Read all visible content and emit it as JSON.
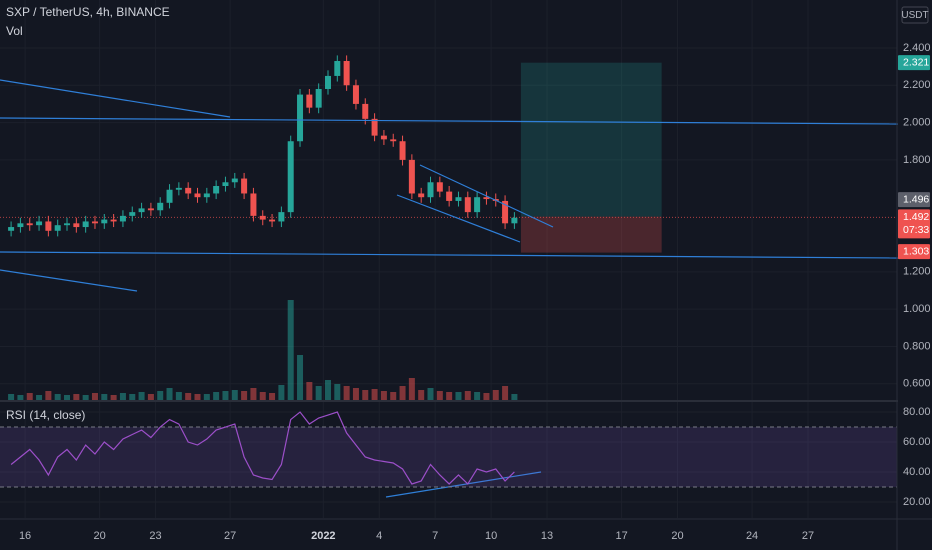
{
  "chart_data": {
    "type": "candlestick",
    "title": "SXP / TetherUS, 4h, BINANCE",
    "volume_label": "Vol",
    "currency": "USDT",
    "up_color": "#26a69a",
    "down_color": "#ef5350",
    "xlim": [
      -0.69,
      95.55
    ],
    "xticks": [
      {
        "value": 2,
        "label": "16"
      },
      {
        "value": 10,
        "label": "20"
      },
      {
        "value": 16,
        "label": "23"
      },
      {
        "value": 24,
        "label": "27"
      },
      {
        "value": 34,
        "label": "2022"
      },
      {
        "value": 40,
        "label": "4"
      },
      {
        "value": 46,
        "label": "7"
      },
      {
        "value": 52,
        "label": "10"
      },
      {
        "value": 58,
        "label": "13"
      },
      {
        "value": 66,
        "label": "17"
      },
      {
        "value": 72,
        "label": "20"
      },
      {
        "value": 80,
        "label": "24"
      },
      {
        "value": 86,
        "label": "27"
      }
    ],
    "ylim": [
      0.513,
      2.657
    ],
    "yticks": [
      {
        "value": 2.4,
        "label": "2.400"
      },
      {
        "value": 2.2,
        "label": "2.200"
      },
      {
        "value": 2.0,
        "label": "2.000"
      },
      {
        "value": 1.8,
        "label": "1.800"
      },
      {
        "value": 1.2,
        "label": "1.200"
      },
      {
        "value": 1.0,
        "label": "1.000"
      },
      {
        "value": 0.8,
        "label": "0.800"
      },
      {
        "value": 0.6,
        "label": "0.600"
      }
    ],
    "open": [
      1.42,
      1.44,
      1.46,
      1.45,
      1.47,
      1.42,
      1.45,
      1.46,
      1.44,
      1.47,
      1.46,
      1.48,
      1.47,
      1.5,
      1.52,
      1.54,
      1.53,
      1.57,
      1.64,
      1.65,
      1.62,
      1.6,
      1.62,
      1.66,
      1.68,
      1.7,
      1.62,
      1.5,
      1.48,
      1.47,
      1.52,
      1.9,
      2.15,
      2.08,
      2.18,
      2.25,
      2.33,
      2.2,
      2.1,
      2.02,
      1.93,
      1.91,
      1.9,
      1.8,
      1.62,
      1.6,
      1.68,
      1.63,
      1.58,
      1.6,
      1.52,
      1.6,
      1.59,
      1.58,
      1.46
    ],
    "high": [
      1.47,
      1.49,
      1.49,
      1.5,
      1.5,
      1.48,
      1.49,
      1.49,
      1.5,
      1.5,
      1.51,
      1.51,
      1.53,
      1.55,
      1.57,
      1.57,
      1.6,
      1.67,
      1.68,
      1.68,
      1.65,
      1.65,
      1.69,
      1.71,
      1.73,
      1.73,
      1.65,
      1.53,
      1.51,
      1.55,
      1.93,
      2.18,
      2.18,
      2.21,
      2.28,
      2.36,
      2.36,
      2.23,
      2.13,
      2.05,
      1.96,
      1.94,
      1.93,
      1.83,
      1.65,
      1.71,
      1.71,
      1.66,
      1.63,
      1.63,
      1.63,
      1.63,
      1.62,
      1.61,
      1.52
    ],
    "low": [
      1.39,
      1.41,
      1.42,
      1.42,
      1.39,
      1.39,
      1.42,
      1.41,
      1.41,
      1.43,
      1.43,
      1.44,
      1.44,
      1.47,
      1.49,
      1.5,
      1.5,
      1.54,
      1.61,
      1.59,
      1.57,
      1.57,
      1.59,
      1.63,
      1.65,
      1.59,
      1.47,
      1.45,
      1.44,
      1.44,
      1.49,
      1.87,
      2.05,
      2.05,
      2.15,
      2.22,
      2.17,
      2.07,
      1.99,
      1.9,
      1.88,
      1.87,
      1.77,
      1.59,
      1.57,
      1.57,
      1.6,
      1.55,
      1.55,
      1.49,
      1.49,
      1.56,
      1.55,
      1.43,
      1.43
    ],
    "close": [
      1.44,
      1.46,
      1.45,
      1.47,
      1.42,
      1.45,
      1.46,
      1.44,
      1.47,
      1.46,
      1.48,
      1.47,
      1.5,
      1.52,
      1.54,
      1.53,
      1.57,
      1.64,
      1.65,
      1.62,
      1.6,
      1.62,
      1.66,
      1.68,
      1.7,
      1.62,
      1.5,
      1.48,
      1.47,
      1.52,
      1.9,
      2.15,
      2.08,
      2.18,
      2.25,
      2.33,
      2.2,
      2.1,
      2.02,
      1.93,
      1.91,
      1.9,
      1.8,
      1.62,
      1.6,
      1.68,
      1.63,
      1.58,
      1.6,
      1.52,
      1.6,
      1.59,
      1.58,
      1.46,
      1.49
    ],
    "volume": [
      6,
      5,
      7,
      5,
      9,
      6,
      5,
      6,
      5,
      7,
      6,
      5,
      7,
      6,
      8,
      6,
      9,
      12,
      8,
      7,
      6,
      6,
      8,
      9,
      10,
      9,
      12,
      8,
      7,
      15,
      100,
      45,
      18,
      14,
      20,
      16,
      14,
      12,
      10,
      11,
      9,
      8,
      14,
      22,
      10,
      12,
      9,
      8,
      8,
      9,
      8,
      7,
      10,
      14,
      6
    ],
    "position": {
      "target": 2.321,
      "entry": 1.496,
      "stop": 1.303
    },
    "last_price": 1.492,
    "countdown": "07:33",
    "rsi": {
      "label": "RSI (14, close)",
      "color": "#9c4fc9",
      "ylim": [
        9.3,
        86.7
      ],
      "yticks": [
        {
          "value": 80,
          "label": "80.00"
        },
        {
          "value": 60,
          "label": "60.00"
        },
        {
          "value": 40,
          "label": "40.00"
        },
        {
          "value": 20,
          "label": "20.00"
        }
      ],
      "bands": [
        70,
        30
      ],
      "values": [
        45,
        50,
        55,
        48,
        38,
        50,
        55,
        48,
        58,
        52,
        60,
        55,
        62,
        65,
        68,
        63,
        70,
        75,
        72,
        60,
        58,
        62,
        68,
        70,
        72,
        50,
        38,
        36,
        35,
        45,
        75,
        80,
        72,
        76,
        78,
        80,
        66,
        58,
        50,
        48,
        47,
        46,
        42,
        32,
        34,
        45,
        38,
        32,
        38,
        32,
        42,
        40,
        42,
        34,
        40
      ]
    }
  }
}
